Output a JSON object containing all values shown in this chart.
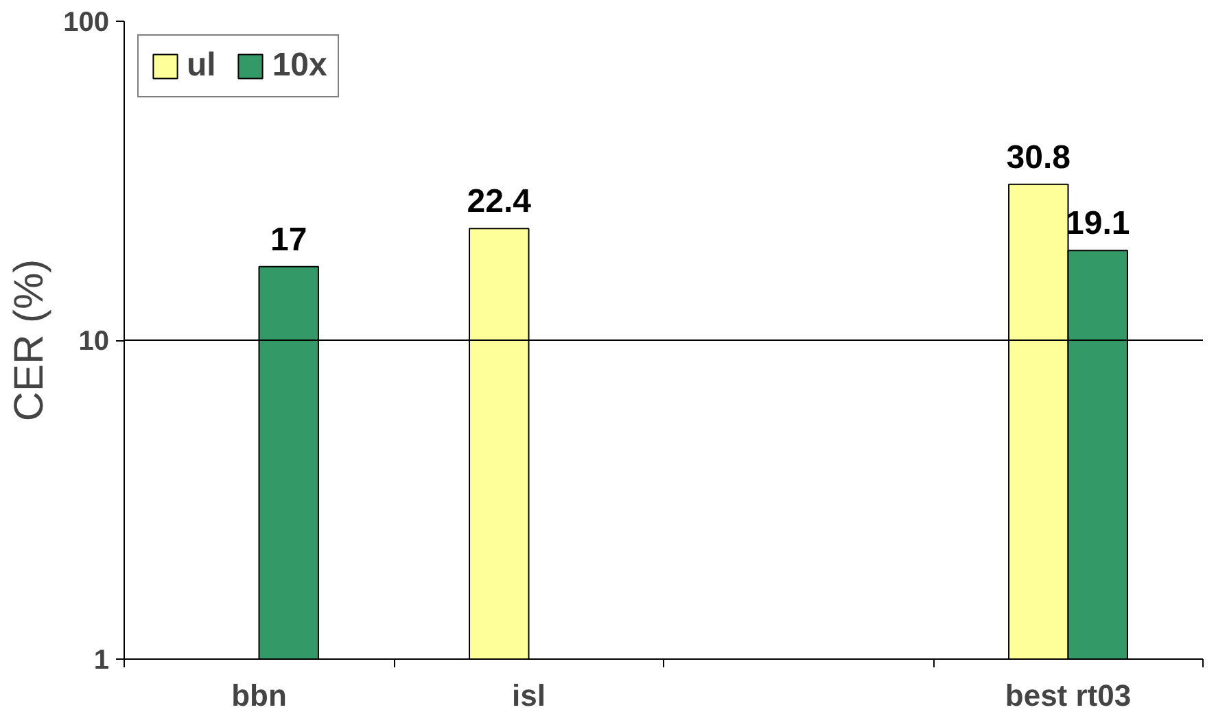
{
  "chart_data": {
    "type": "bar",
    "ylabel": "CER (%)",
    "categories": [
      "bbn",
      "isl",
      null,
      "best rt03"
    ],
    "series": [
      {
        "name": "ul",
        "color": "#ffff99",
        "values": [
          null,
          22.4,
          null,
          30.8
        ]
      },
      {
        "name": "10x",
        "color": "#339966",
        "values": [
          17,
          null,
          null,
          19.1
        ]
      }
    ],
    "log": "y",
    "ylim": [
      1,
      100
    ],
    "yticks": [
      1,
      10,
      100
    ],
    "ref_lines": [
      {
        "axis": "y",
        "value": 10,
        "color": "#000000"
      }
    ],
    "legend": "top left",
    "data_labels": true
  }
}
